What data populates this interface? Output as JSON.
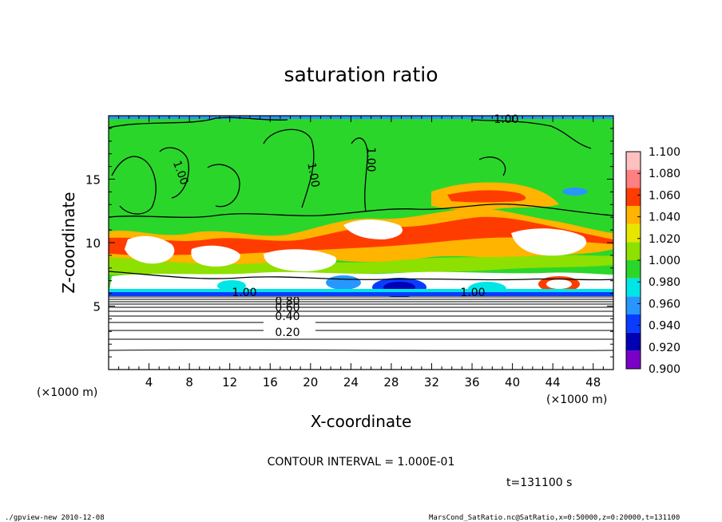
{
  "chart_data": {
    "type": "heatmap",
    "title": "saturation ratio",
    "xlabel": "X-coordinate",
    "ylabel": "Z-coordinate",
    "x_unit_left": "(×1000 m)",
    "x_unit_right": "(×1000 m)",
    "xlim": [
      0,
      50
    ],
    "ylim": [
      0,
      20
    ],
    "x_ticks": [
      "4",
      "8",
      "12",
      "16",
      "20",
      "24",
      "28",
      "32",
      "36",
      "40",
      "44",
      "48"
    ],
    "y_ticks": [
      "5",
      "10",
      "15"
    ],
    "colorbar": {
      "labels": [
        "0.900",
        "0.920",
        "0.940",
        "0.960",
        "0.980",
        "1.000",
        "1.020",
        "1.040",
        "1.060",
        "1.080",
        "1.100"
      ],
      "colors": [
        "#7a00c8",
        "#0000b4",
        "#0a3cff",
        "#2896ff",
        "#00e6e6",
        "#2bd62b",
        "#8ee000",
        "#e6e600",
        "#ffb400",
        "#ff3c00",
        "#ff8080",
        "#ffc0c0"
      ]
    },
    "contour_labels": [
      "1.00",
      "1.00",
      "1.00",
      "1.00",
      "1.00",
      "1.00",
      "0.80",
      "0.60",
      "0.40",
      "0.20"
    ],
    "contour_interval_text": "CONTOUR INTERVAL = 1.000E-01",
    "time_text": "t=131100 s",
    "footer_left": "./gpview-new  2010-12-08",
    "footer_right": "MarsCond_SatRatio.nc@SatRatio,x=0:50000,z=0:20000,t=131100"
  }
}
